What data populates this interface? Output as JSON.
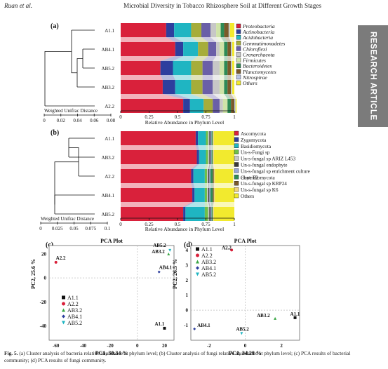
{
  "header": {
    "left": "Ruan et al.",
    "title": "Microbial Diversity in Tobacco Rhizosphere Soil at Different Growth Stages"
  },
  "side_tab": "RESEARCH ARTICLE",
  "caption": {
    "label": "Fig. 5.",
    "text": "(a) Cluster analysis of bacteria relative abundance at phylum level; (b) Cluster analysis of fungi relative abundance at phylum level; (c) PCA results of bacterial community; (d) PCA results of fungi community."
  },
  "chart_data": [
    {
      "panel": "(a)",
      "type": "bar",
      "orientation": "horizontal-stacked",
      "xlabel": "Relative Abundance in Phylum Level",
      "xticks": [
        "0",
        "0.25",
        "0.5",
        "0.75",
        "1"
      ],
      "xlim": [
        0,
        1
      ],
      "categories": [
        "A1.1",
        "AB4.1",
        "AB5.2",
        "AB3.2",
        "A2.2"
      ],
      "dendrogram_label": "Weighted Unifrac Distance",
      "dendrogram_ticks": [
        "0",
        "0.02",
        "0.04",
        "0.06",
        "0.08"
      ],
      "series": [
        {
          "name": "Proteobacteria",
          "color": "#d9213b",
          "values": [
            0.4,
            0.48,
            0.35,
            0.37,
            0.55
          ]
        },
        {
          "name": "Actinobacteria",
          "color": "#2d3f9e",
          "values": [
            0.07,
            0.07,
            0.11,
            0.11,
            0.06
          ]
        },
        {
          "name": "Acidobacteria",
          "color": "#1fb5c2",
          "values": [
            0.15,
            0.13,
            0.16,
            0.14,
            0.12
          ]
        },
        {
          "name": "Gemmatimonadetes",
          "color": "#a6ad3a",
          "values": [
            0.09,
            0.09,
            0.1,
            0.1,
            0.08
          ]
        },
        {
          "name": "Chloroflexi",
          "color": "#6a5fa8",
          "values": [
            0.08,
            0.07,
            0.09,
            0.09,
            0.06
          ]
        },
        {
          "name": "Crenarchaeota",
          "color": "#c7c7c7",
          "values": [
            0.05,
            0.03,
            0.06,
            0.06,
            0.03
          ]
        },
        {
          "name": "Firmicutes",
          "color": "#cfe3a8",
          "values": [
            0.04,
            0.04,
            0.04,
            0.04,
            0.04
          ]
        },
        {
          "name": "Bacteroidetes",
          "color": "#2e8b57",
          "values": [
            0.03,
            0.03,
            0.03,
            0.03,
            0.03
          ]
        },
        {
          "name": "Planctomycetes",
          "color": "#7a5a2a",
          "values": [
            0.04,
            0.03,
            0.03,
            0.03,
            0.03
          ]
        },
        {
          "name": "Nitrospirae",
          "color": "#b8c4e6",
          "values": [
            0.01,
            0.01,
            0.01,
            0.01,
            0.01
          ]
        },
        {
          "name": "Others",
          "color": "#f2ea2e",
          "values": [
            0.04,
            0.02,
            0.02,
            0.02,
            0.01
          ]
        }
      ]
    },
    {
      "panel": "(b)",
      "type": "bar",
      "orientation": "horizontal-stacked",
      "xlabel": "Relative Abundance in Phylum Level",
      "xticks": [
        "0",
        "0.25",
        "0.5",
        "0.75",
        "1"
      ],
      "xlim": [
        0,
        1
      ],
      "categories": [
        "A1.1",
        "AB3.2",
        "A2.2",
        "AB4.1",
        "AB5.2"
      ],
      "dendrogram_label": "Weighted Unifrac Distance",
      "dendrogram_ticks": [
        "0",
        "0.025",
        "0.05",
        "0.075",
        "0.1"
      ],
      "series": [
        {
          "name": "Ascomycota",
          "color": "#d9213b",
          "values": [
            0.66,
            0.67,
            0.62,
            0.63,
            0.55
          ]
        },
        {
          "name": "Zygomycota",
          "color": "#2d3f9e",
          "values": [
            0.02,
            0.02,
            0.02,
            0.02,
            0.02
          ]
        },
        {
          "name": "Basidiomycota",
          "color": "#1fb5c2",
          "values": [
            0.07,
            0.06,
            0.1,
            0.09,
            0.17
          ]
        },
        {
          "name": "Un-s-Fungi sp",
          "color": "#6fbf4a",
          "values": [
            0.02,
            0.02,
            0.02,
            0.02,
            0.03
          ]
        },
        {
          "name": "Un-s-fungal sp ARIZ L453",
          "color": "#c7c7c7",
          "values": [
            0.01,
            0.01,
            0.01,
            0.01,
            0.01
          ]
        },
        {
          "name": "Un-s-fungal endophyte",
          "color": "#3a3a3a",
          "values": [
            0.01,
            0.01,
            0.01,
            0.01,
            0.01
          ]
        },
        {
          "name": "Un-s-fungal sp enrichment culture clone F2",
          "color": "#9aa8d4",
          "values": [
            0.01,
            0.01,
            0.01,
            0.01,
            0.01
          ]
        },
        {
          "name": "Chytridiomycota",
          "color": "#2e8b57",
          "values": [
            0.01,
            0.01,
            0.02,
            0.02,
            0.01
          ]
        },
        {
          "name": "Un-s-fungal sp KRP24",
          "color": "#7a5a2a",
          "values": [
            0.0,
            0.0,
            0.01,
            0.01,
            0.0
          ]
        },
        {
          "name": "Un-s-fungal sp K6",
          "color": "#f0d37a",
          "values": [
            0.01,
            0.01,
            0.01,
            0.01,
            0.01
          ]
        },
        {
          "name": "Others",
          "color": "#f2ea2e",
          "values": [
            0.18,
            0.18,
            0.16,
            0.17,
            0.18
          ]
        }
      ]
    },
    {
      "panel": "(c)",
      "type": "scatter",
      "title": "PCA Plot",
      "xlabel": "PC1, 30.34 %",
      "ylabel": "PC2, 25.6 %",
      "xlim": [
        -65,
        27
      ],
      "ylim": [
        -52,
        27
      ],
      "xticks": [
        -60,
        -40,
        -20,
        0,
        20
      ],
      "yticks": [
        20,
        0,
        -20,
        -40
      ],
      "legend": "bottom-left",
      "series": [
        {
          "name": "A1.1",
          "color": "#111111",
          "marker": "square",
          "points": [
            [
              20,
              -42
            ]
          ]
        },
        {
          "name": "A2.2",
          "color": "#d9213b",
          "marker": "circle",
          "points": [
            [
              -60,
              13
            ]
          ]
        },
        {
          "name": "AB3.2",
          "color": "#3aa646",
          "marker": "triangle",
          "points": [
            [
              23,
              20
            ]
          ]
        },
        {
          "name": "AB4.1",
          "color": "#2d3f9e",
          "marker": "diamond",
          "points": [
            [
              16,
              5
            ]
          ]
        },
        {
          "name": "AB5.2",
          "color": "#1fb5c2",
          "marker": "triangle-down",
          "points": [
            [
              24,
              23
            ]
          ]
        }
      ]
    },
    {
      "panel": "(d)",
      "type": "scatter",
      "title": "PCA Plot",
      "xlabel": "PC1, 34.28 %",
      "ylabel": "PC2, 26.5 %",
      "xlim": [
        -3,
        3
      ],
      "ylim": [
        -2,
        4.3
      ],
      "xticks": [
        -2,
        0,
        2
      ],
      "yticks": [
        4,
        3,
        2,
        1,
        0,
        -1
      ],
      "legend": "top-left",
      "series": [
        {
          "name": "A1.1",
          "color": "#111111",
          "marker": "square",
          "points": [
            [
              2.75,
              -0.5
            ]
          ]
        },
        {
          "name": "A2.2",
          "color": "#d9213b",
          "marker": "circle",
          "points": [
            [
              -0.75,
              4.0
            ]
          ]
        },
        {
          "name": "AB3.2",
          "color": "#3aa646",
          "marker": "triangle",
          "points": [
            [
              1.65,
              -0.55
            ]
          ]
        },
        {
          "name": "AB4.1",
          "color": "#2d3f9e",
          "marker": "diamond",
          "points": [
            [
              -2.8,
              -1.25
            ]
          ]
        },
        {
          "name": "AB5.2",
          "color": "#1fb5c2",
          "marker": "triangle-down",
          "points": [
            [
              -0.2,
              -1.55
            ]
          ]
        }
      ]
    }
  ]
}
